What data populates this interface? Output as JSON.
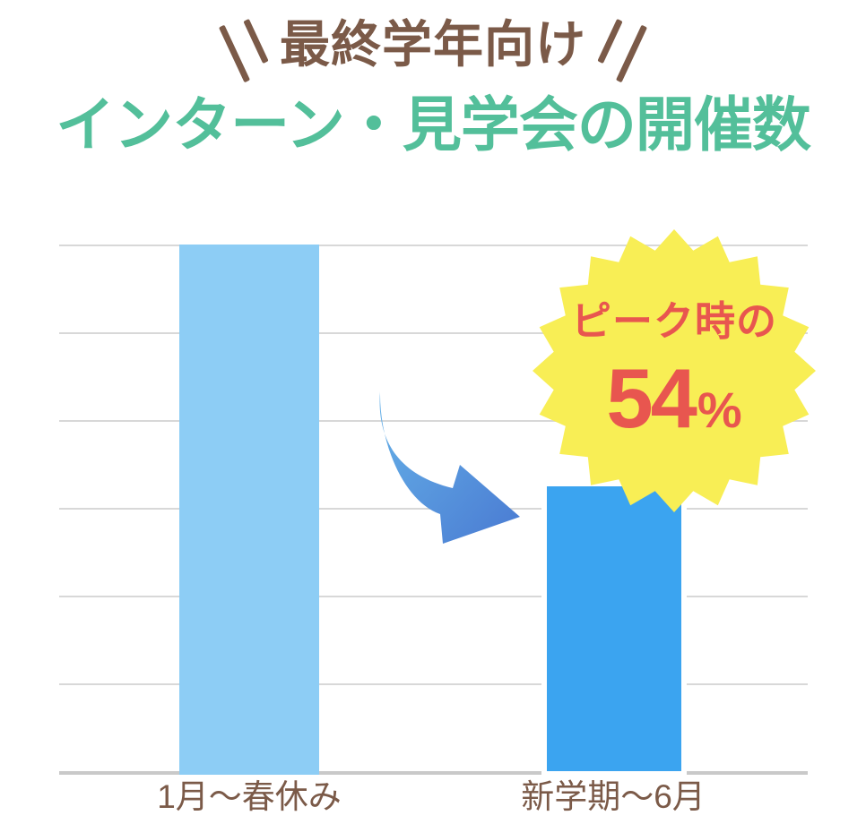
{
  "header": {
    "eyebrow": "最終学年向け",
    "eyebrow_color": "#7B5A48",
    "title": "インターン・見学会の開催数",
    "title_color": "#53BF9A"
  },
  "chart_data": {
    "type": "bar",
    "title": "インターン・見学会の開催数",
    "subtitle": "最終学年向け",
    "categories": [
      "1月〜春休み",
      "新学期〜6月"
    ],
    "values": [
      100,
      54
    ],
    "value_meaning": "percent of peak-period events held",
    "ylim": [
      0,
      100
    ],
    "gridlines": 6,
    "grid_on": true,
    "grid_color": "#D8D8D8",
    "axis_color": "#C9C9C9",
    "bar_colors": [
      "#8DCDF5",
      "#3BA4F0"
    ],
    "bar2_outline": "#FFFFFF",
    "label_color": "#7B5A48",
    "annotation": "ピーク時の54%"
  },
  "badge": {
    "line1": "ピーク時の",
    "value": "54",
    "unit": "%",
    "fill": "#F8EE55",
    "text_color": "#E8564F"
  },
  "arrow": {
    "gradient_from": "#66B2E8",
    "gradient_to": "#4C7FD4"
  }
}
